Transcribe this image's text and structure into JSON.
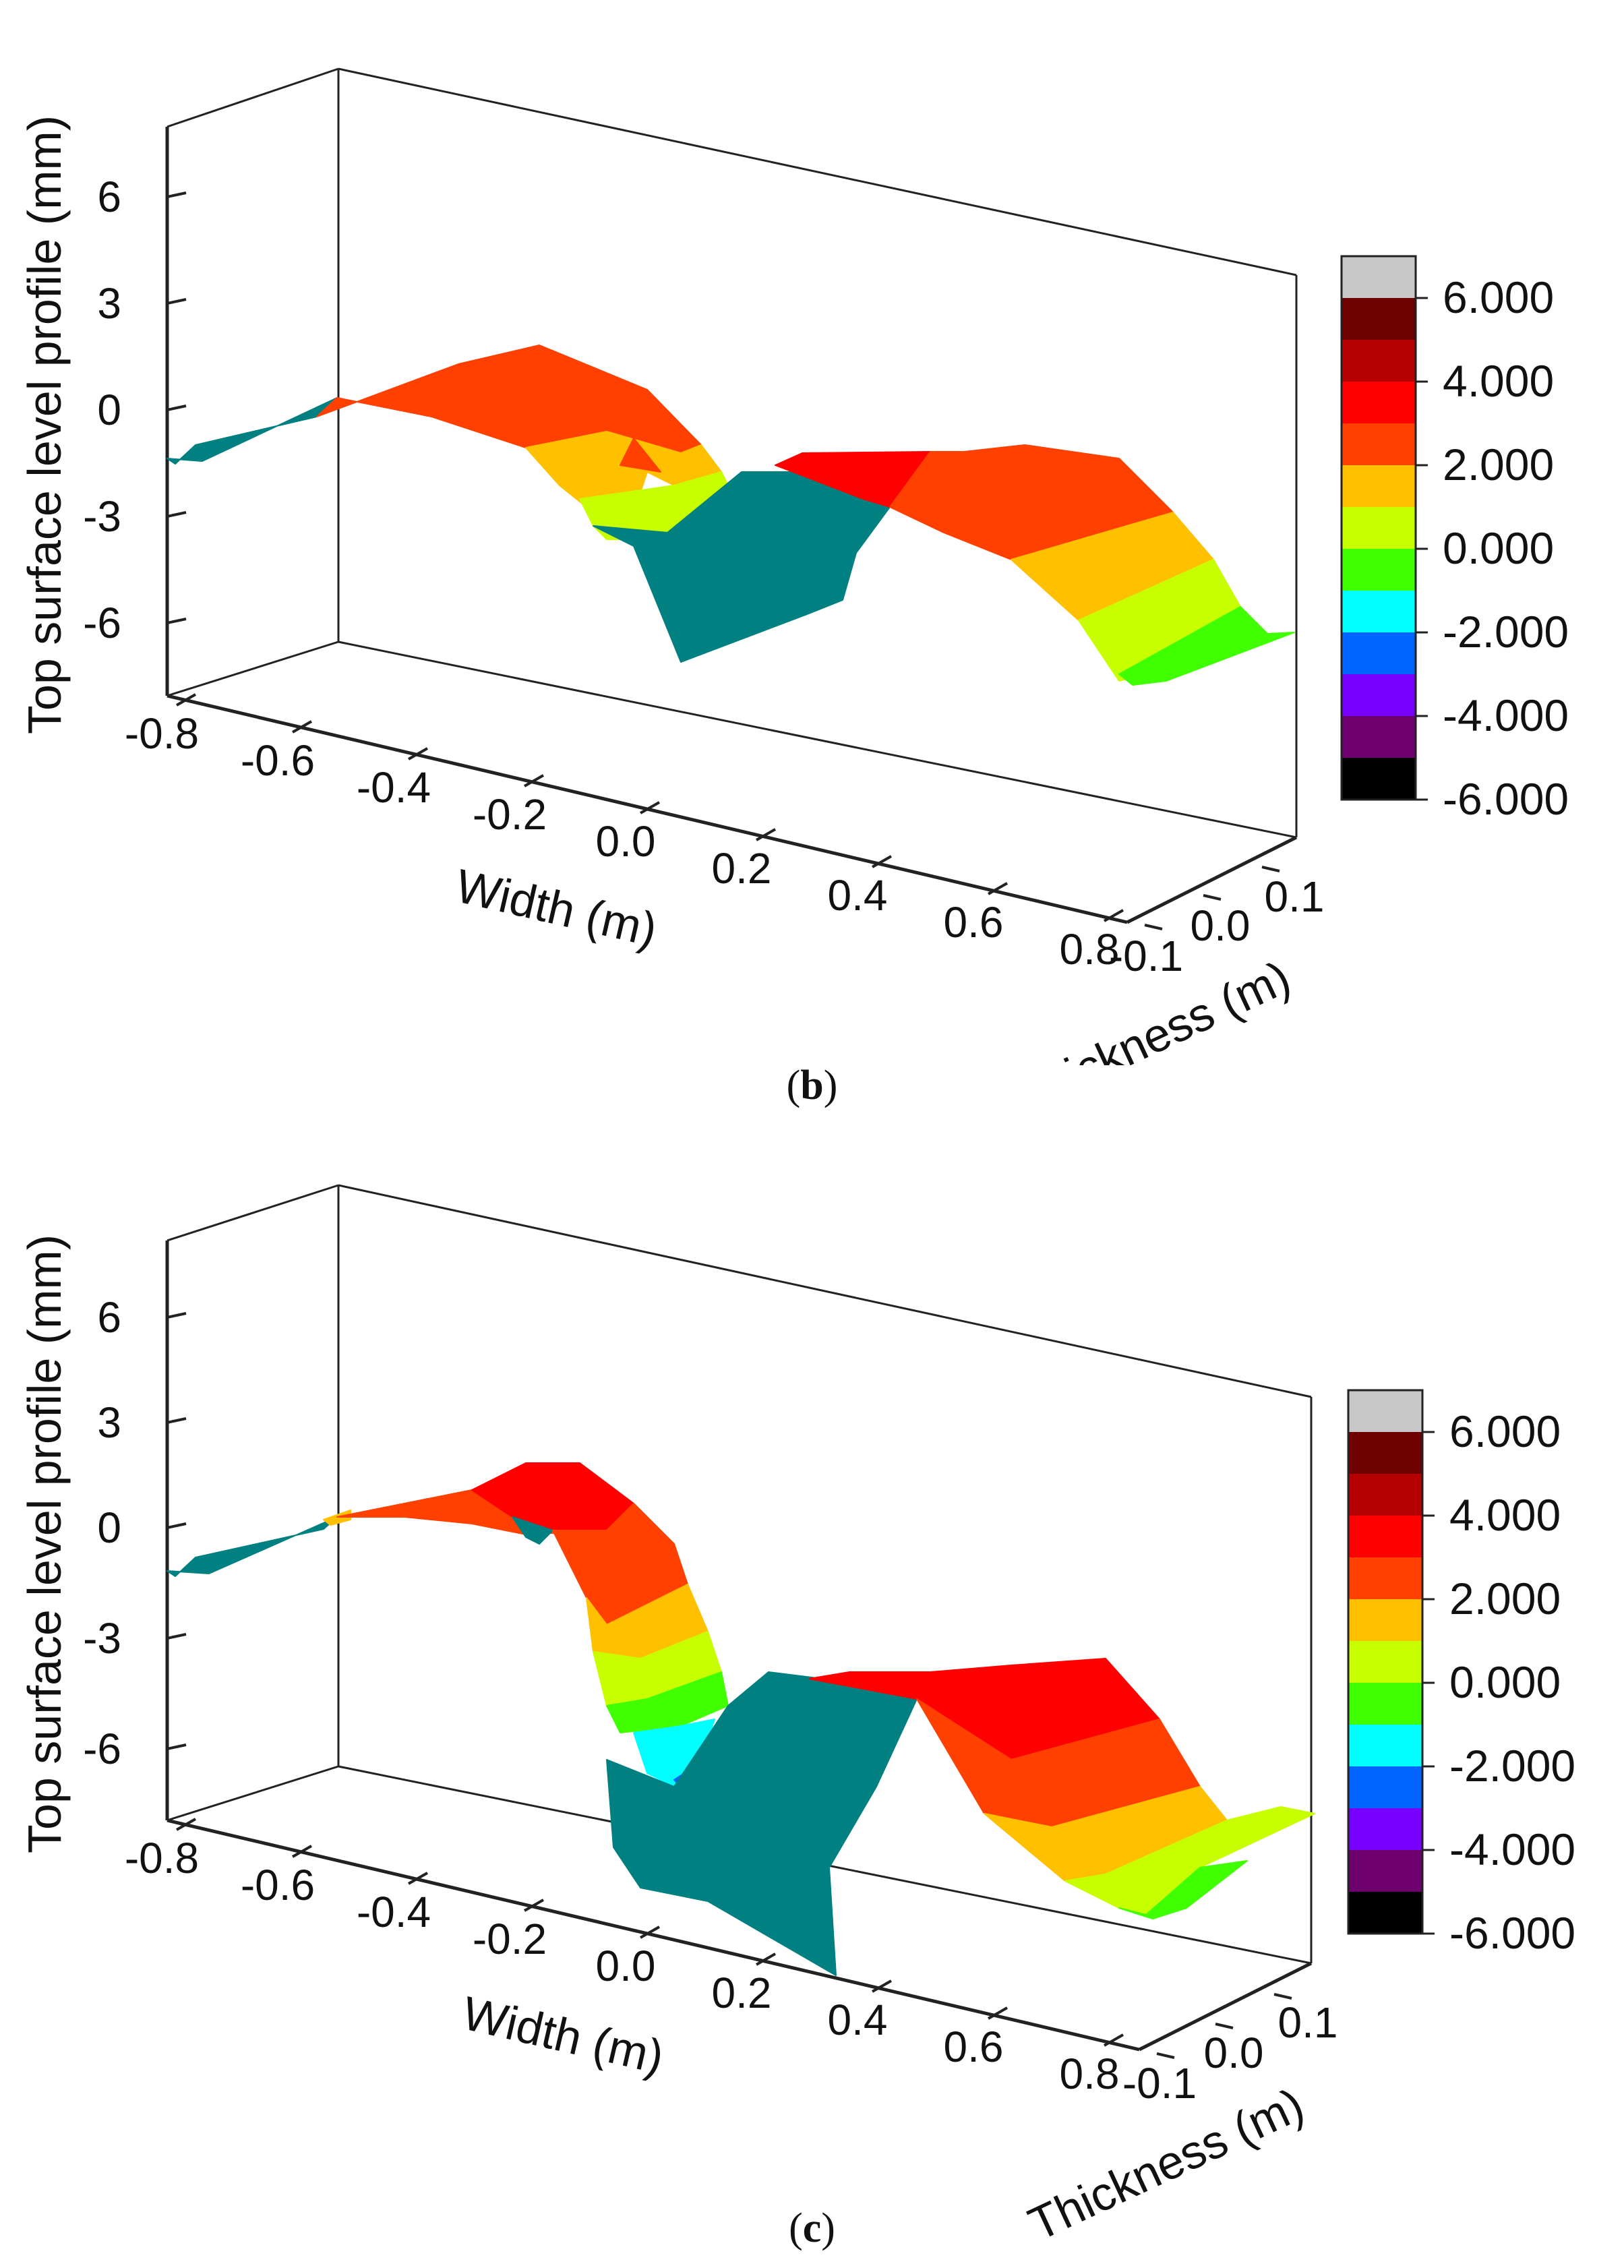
{
  "chart_data": [
    {
      "panel": "b",
      "caption_open": "(",
      "caption_letter": "b",
      "caption_close": ")",
      "type": "surface3d",
      "xlabel": "Width (m)",
      "ylabel": "Thickness (m)",
      "zlabel": "Top surface level profile (mm)",
      "x_ticks": [
        "-0.8",
        "-0.6",
        "-0.4",
        "-0.2",
        "0.0",
        "0.2",
        "0.4",
        "0.6",
        "0.8"
      ],
      "y_ticks": [
        "-0.1",
        "0.0",
        "0.1"
      ],
      "z_ticks": [
        "6",
        "3",
        "0",
        "-3",
        "-6"
      ],
      "zlim": [
        -8,
        8
      ],
      "colorbar_labels": [
        "6.000",
        "4.000",
        "2.000",
        "0.000",
        "-2.000",
        "-4.000",
        "-6.000"
      ],
      "colorbar_colors": [
        "#c8c8c8",
        "#6e0000",
        "#b40000",
        "#ff0000",
        "#ff4000",
        "#ffc000",
        "#c8ff00",
        "#40ff00",
        "#00ffff",
        "#0064ff",
        "#7800ff",
        "#6e006e",
        "#000000"
      ],
      "approx_profile_width_m": [
        -0.8,
        -0.6,
        -0.4,
        -0.2,
        -0.1,
        0.0,
        0.1,
        0.2,
        0.4,
        0.6,
        0.8
      ],
      "approx_profile_level_mm": [
        -1.5,
        0.5,
        1.5,
        2.0,
        1.0,
        -2.0,
        -6.5,
        -3.0,
        2.0,
        -1.0,
        -3.0
      ]
    },
    {
      "panel": "c",
      "caption_open": "(",
      "caption_letter": "c",
      "caption_close": ")",
      "type": "surface3d",
      "xlabel": "Width (m)",
      "ylabel": "Thickness (m)",
      "zlabel": "Top surface level profile (mm)",
      "x_ticks": [
        "-0.8",
        "-0.6",
        "-0.4",
        "-0.2",
        "0.0",
        "0.2",
        "0.4",
        "0.6",
        "0.8"
      ],
      "y_ticks": [
        "-0.1",
        "0.0",
        "0.1"
      ],
      "z_ticks": [
        "6",
        "3",
        "0",
        "-3",
        "-6"
      ],
      "zlim": [
        -8,
        8
      ],
      "colorbar_labels": [
        "6.000",
        "4.000",
        "2.000",
        "0.000",
        "-2.000",
        "-4.000",
        "-6.000"
      ],
      "colorbar_colors": [
        "#c8c8c8",
        "#6e0000",
        "#b40000",
        "#ff0000",
        "#ff4000",
        "#ffc000",
        "#c8ff00",
        "#40ff00",
        "#00ffff",
        "#0064ff",
        "#7800ff",
        "#6e006e",
        "#000000"
      ],
      "approx_profile_width_m": [
        -0.8,
        -0.6,
        -0.4,
        -0.2,
        -0.1,
        0.0,
        0.1,
        0.2,
        0.4,
        0.6,
        0.8
      ],
      "approx_profile_level_mm": [
        -1.5,
        0.5,
        1.0,
        2.5,
        1.0,
        -3.5,
        -7.0,
        -3.5,
        3.0,
        -1.0,
        -3.5
      ]
    }
  ]
}
